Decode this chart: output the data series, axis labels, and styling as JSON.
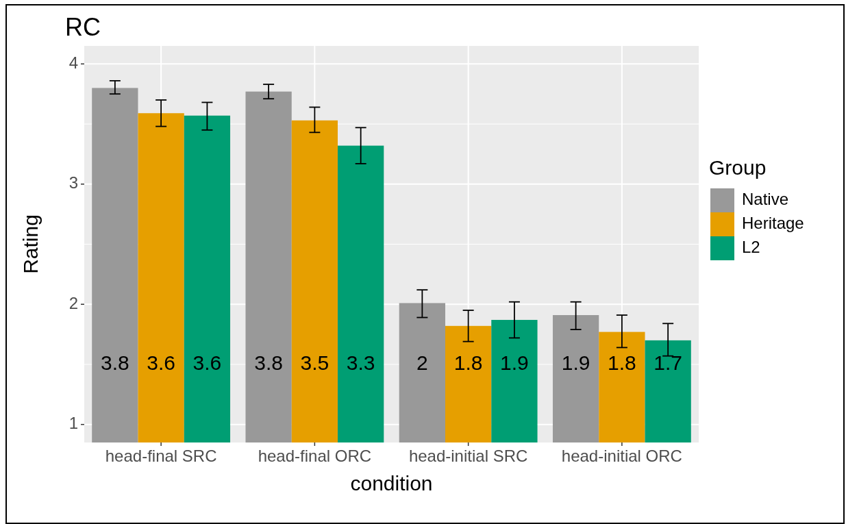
{
  "chart_data": {
    "type": "bar",
    "title": "RC",
    "xlabel": "condition",
    "ylabel": "Rating",
    "legend_title": "Group",
    "legend": "right",
    "grid": true,
    "categories": [
      "head-final SRC",
      "head-final ORC",
      "head-initial SRC",
      "head-initial ORC"
    ],
    "ylim": [
      0.85,
      4.15
    ],
    "yticks": [
      1,
      2,
      3,
      4
    ],
    "series": [
      {
        "name": "Native",
        "color": "#999999",
        "values": [
          3.8,
          3.77,
          2.01,
          1.91
        ],
        "errors": [
          [
            3.75,
            3.86
          ],
          [
            3.71,
            3.83
          ],
          [
            1.89,
            2.12
          ],
          [
            1.79,
            2.02
          ]
        ],
        "value_labels": [
          "3.8",
          "3.8",
          "2",
          "1.9"
        ]
      },
      {
        "name": "Heritage",
        "color": "#e69f00",
        "values": [
          3.59,
          3.53,
          1.82,
          1.77
        ],
        "errors": [
          [
            3.48,
            3.7
          ],
          [
            3.43,
            3.64
          ],
          [
            1.69,
            1.95
          ],
          [
            1.64,
            1.91
          ]
        ],
        "value_labels": [
          "3.6",
          "3.5",
          "1.8",
          "1.8"
        ]
      },
      {
        "name": "L2",
        "color": "#009e73",
        "values": [
          3.57,
          3.32,
          1.87,
          1.7
        ],
        "errors": [
          [
            3.45,
            3.68
          ],
          [
            3.17,
            3.47
          ],
          [
            1.72,
            2.02
          ],
          [
            1.57,
            1.84
          ]
        ],
        "value_labels": [
          "3.6",
          "3.3",
          "1.9",
          "1.7"
        ]
      }
    ]
  }
}
